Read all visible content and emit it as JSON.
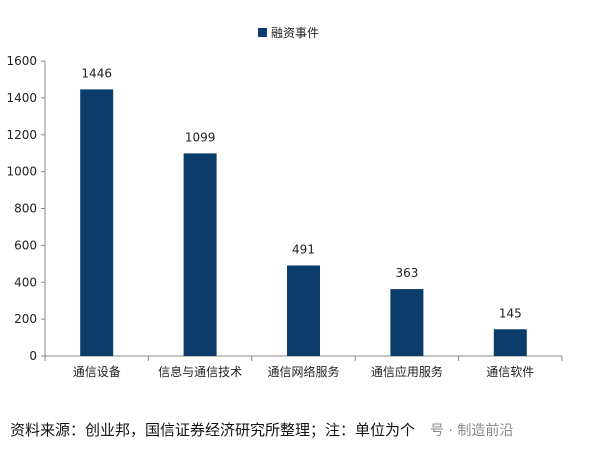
{
  "chart_data": {
    "type": "bar",
    "categories": [
      "通信设备",
      "信息与通信技术",
      "通信网络服务",
      "通信应用服务",
      "通信软件"
    ],
    "series": [
      {
        "name": "融资事件",
        "values": [
          1446,
          1099,
          491,
          363,
          145
        ]
      }
    ],
    "ylim": [
      0,
      1600
    ],
    "yticks": [
      0,
      200,
      400,
      600,
      800,
      1000,
      1200,
      1400,
      1600
    ],
    "bar_color": "#0b3d6b",
    "axis_color": "#888888",
    "legend_position": "top-center",
    "grid": false
  },
  "source_text": "资料来源：创业邦，国信证券经济研究所整理；注：单位为个",
  "watermark_text": "号 · 制造前沿"
}
